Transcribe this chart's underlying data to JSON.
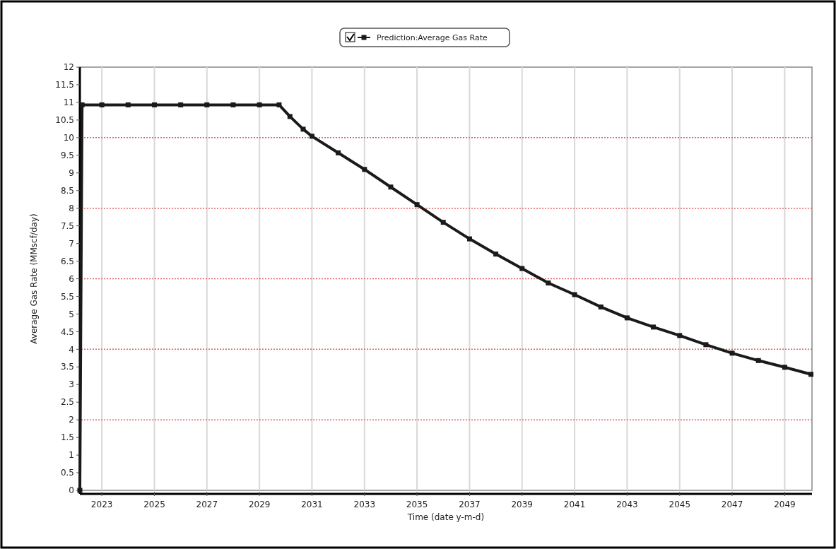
{
  "chart_data": {
    "type": "line",
    "xlabel": "Time (date y-m-d)",
    "ylabel": "Average Gas Rate (MMscf/day)",
    "x": [
      "2022-03",
      "2022-04",
      "2023-01",
      "2024-01",
      "2025-01",
      "2026-01",
      "2027-01",
      "2028-01",
      "2029-01",
      "2029-10",
      "2030-03",
      "2030-09",
      "2031-01",
      "2032-01",
      "2033-01",
      "2034-01",
      "2035-01",
      "2036-01",
      "2037-01",
      "2038-01",
      "2039-01",
      "2040-01",
      "2041-01",
      "2042-01",
      "2043-01",
      "2044-01",
      "2045-01",
      "2046-01",
      "2047-01",
      "2048-01",
      "2049-01",
      "2050-01"
    ],
    "series": [
      {
        "name": "Prediction:Average Gas Rate",
        "color": "#1a1a1a",
        "values": [
          0,
          10.93,
          10.93,
          10.93,
          10.93,
          10.93,
          10.93,
          10.93,
          10.93,
          10.93,
          10.6,
          10.24,
          10.04,
          9.57,
          9.1,
          8.6,
          8.1,
          7.6,
          7.13,
          6.7,
          6.29,
          5.88,
          5.55,
          5.2,
          4.89,
          4.63,
          4.39,
          4.13,
          3.89,
          3.68,
          3.49,
          3.29
        ]
      }
    ],
    "xlim": [
      "2022-03",
      "2050-01-15"
    ],
    "xticks": [
      "2023",
      "2025",
      "2027",
      "2029",
      "2031",
      "2033",
      "2035",
      "2037",
      "2039",
      "2041",
      "2043",
      "2045",
      "2047",
      "2049"
    ],
    "ylim": [
      0,
      12
    ],
    "yticks": [
      0,
      0.5,
      1,
      1.5,
      2,
      2.5,
      3,
      3.5,
      4,
      4.5,
      5,
      5.5,
      6,
      6.5,
      7,
      7.5,
      8,
      8.5,
      9,
      9.5,
      10,
      10.5,
      11,
      11.5,
      12
    ],
    "grid": "x",
    "legend": "top",
    "marker": "square",
    "line_style": "solid",
    "ref_lines": [
      {
        "axis": "y",
        "value": 2,
        "color": "#e06060",
        "line_style": "dotted"
      },
      {
        "axis": "y",
        "value": 4,
        "color": "#e06060",
        "line_style": "dotted"
      },
      {
        "axis": "y",
        "value": 6,
        "color": "#e06060",
        "line_style": "dotted"
      },
      {
        "axis": "y",
        "value": 8,
        "color": "#e06060",
        "line_style": "dotted"
      },
      {
        "axis": "y",
        "value": 10,
        "color": "#e06060",
        "line_style": "dotted"
      }
    ]
  }
}
